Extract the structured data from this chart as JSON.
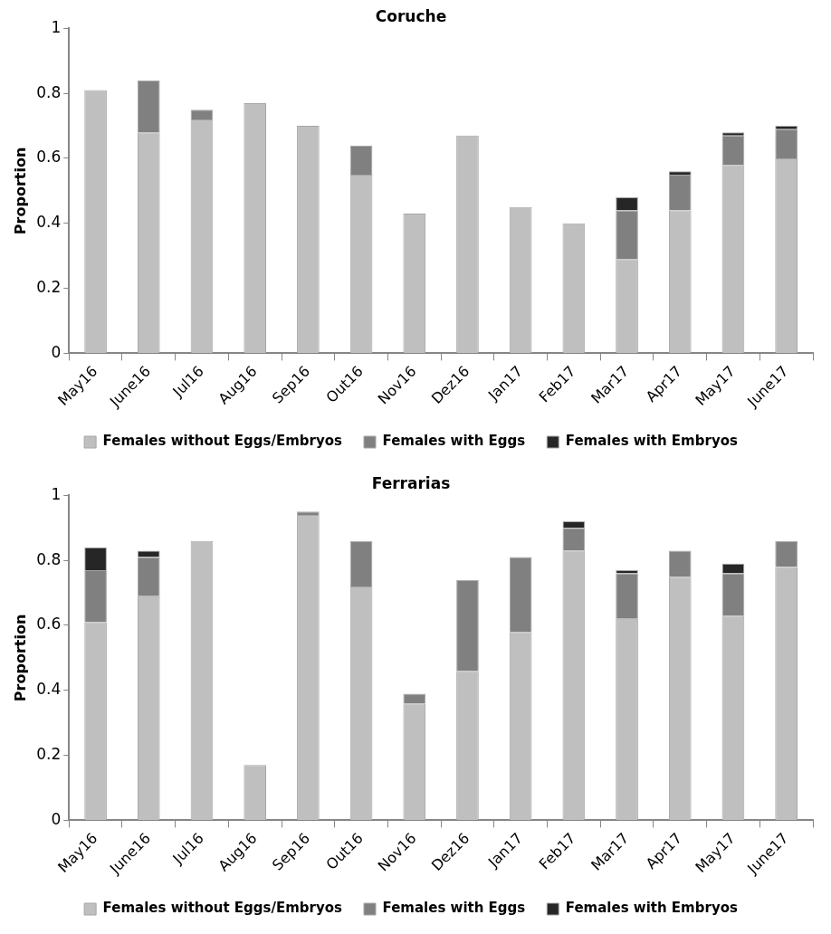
{
  "chart_data": [
    {
      "type": "bar",
      "title": "Coruche",
      "ylabel": "Proportion",
      "stacked": true,
      "legend": "bottom",
      "categories": [
        "May16",
        "June16",
        "Jul16",
        "Aug16",
        "Sep16",
        "Out16",
        "Nov16",
        "Dez16",
        "Jan17",
        "Feb17",
        "Mar17",
        "Apr17",
        "May17",
        "June17"
      ],
      "series": [
        {
          "name": "Females without Eggs/Embryos",
          "color": "#bfbfbf",
          "values": [
            0.81,
            0.68,
            0.72,
            0.77,
            0.7,
            0.55,
            0.43,
            0.67,
            0.45,
            0.4,
            0.29,
            0.44,
            0.58,
            0.6
          ]
        },
        {
          "name": "Females with Eggs",
          "color": "#808080",
          "values": [
            0,
            0.16,
            0.03,
            0,
            0,
            0.09,
            0,
            0,
            0,
            0,
            0.15,
            0.11,
            0.09,
            0.09
          ]
        },
        {
          "name": "Females with Embryos",
          "color": "#262626",
          "values": [
            0,
            0,
            0,
            0,
            0,
            0,
            0,
            0,
            0,
            0,
            0.04,
            0.01,
            0.01,
            0.01
          ]
        }
      ],
      "ylim": [
        0,
        1
      ],
      "yticks": [
        0,
        0.2,
        0.4,
        0.6,
        0.8,
        1
      ]
    },
    {
      "type": "bar",
      "title": "Ferrarias",
      "ylabel": "Proportion",
      "stacked": true,
      "legend": "bottom",
      "categories": [
        "May16",
        "June16",
        "Jul16",
        "Aug16",
        "Sep16",
        "Out16",
        "Nov16",
        "Dez16",
        "Jan17",
        "Feb17",
        "Mar17",
        "Apr17",
        "May17",
        "June17"
      ],
      "series": [
        {
          "name": "Females without Eggs/Embryos",
          "color": "#bfbfbf",
          "values": [
            0.61,
            0.69,
            0.86,
            0.17,
            0.94,
            0.72,
            0.36,
            0.46,
            0.58,
            0.83,
            0.62,
            0.75,
            0.63,
            0.78
          ]
        },
        {
          "name": "Females with Eggs",
          "color": "#808080",
          "values": [
            0.16,
            0.12,
            0,
            0,
            0.01,
            0.14,
            0.03,
            0.28,
            0.23,
            0.07,
            0.14,
            0.08,
            0.13,
            0.08
          ]
        },
        {
          "name": "Females with Embryos",
          "color": "#262626",
          "values": [
            0.07,
            0.02,
            0,
            0,
            0,
            0,
            0,
            0,
            0,
            0.02,
            0.01,
            0,
            0.03,
            0
          ]
        }
      ],
      "ylim": [
        0,
        1
      ],
      "yticks": [
        0,
        0.2,
        0.4,
        0.6,
        0.8,
        1
      ]
    }
  ]
}
